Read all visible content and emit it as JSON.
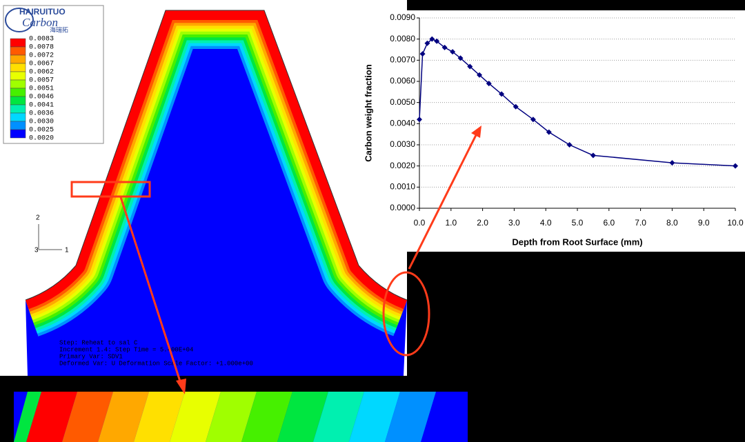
{
  "logo": {
    "brand": "HAIRUITUO",
    "script": "Carbon",
    "cn": "海瑞拓"
  },
  "contour_legend": {
    "labels": [
      "0.0083",
      "0.0078",
      "0.0072",
      "0.0067",
      "0.0062",
      "0.0057",
      "0.0051",
      "0.0046",
      "0.0041",
      "0.0036",
      "0.0030",
      "0.0025",
      "0.0020"
    ],
    "colors": [
      "#ff0000",
      "#ff5a00",
      "#ffa800",
      "#ffe000",
      "#e8ff00",
      "#a0ff00",
      "#46f000",
      "#00e640",
      "#00f0b0",
      "#00d8ff",
      "#0090ff",
      "#0000ff"
    ]
  },
  "triad": {
    "y": "2",
    "z": "3",
    "x": "1"
  },
  "step_info": [
    "Step: Reheat to sal C",
    "Increment   1.4: Step Time =   5.400E+04",
    "Primary Var: SDV1",
    "Deformed Var: U   Deformation Scale Factor: +1.000e+00"
  ],
  "chart_data": {
    "type": "line",
    "x_label": "Depth from Root Surface (mm)",
    "y_label": "Carbon weight fraction",
    "x": [
      0.0,
      0.1,
      0.25,
      0.4,
      0.55,
      0.8,
      1.05,
      1.3,
      1.6,
      1.9,
      2.2,
      2.6,
      3.05,
      3.6,
      4.1,
      4.75,
      5.5,
      8.0,
      10.0
    ],
    "series": [
      {
        "name": "Carbon",
        "color": "#000080",
        "values": [
          0.0042,
          0.0073,
          0.0078,
          0.008,
          0.0079,
          0.0076,
          0.0074,
          0.0071,
          0.0067,
          0.0063,
          0.0059,
          0.0054,
          0.0048,
          0.0042,
          0.0036,
          0.003,
          0.0025,
          0.00215,
          0.002
        ]
      }
    ],
    "xlim": [
      0,
      10
    ],
    "ylim": [
      0,
      0.009
    ],
    "xticks": [
      {
        "value": 0,
        "label": "0.0"
      },
      {
        "value": 1,
        "label": "1.0"
      },
      {
        "value": 2,
        "label": "2.0"
      },
      {
        "value": 3,
        "label": "3.0"
      },
      {
        "value": 4,
        "label": "4.0"
      },
      {
        "value": 5,
        "label": "5.0"
      },
      {
        "value": 6,
        "label": "6.0"
      },
      {
        "value": 7,
        "label": "7.0"
      },
      {
        "value": 8,
        "label": "8.0"
      },
      {
        "value": 9,
        "label": "9.0"
      },
      {
        "value": 10,
        "label": "10.0"
      }
    ],
    "yticks": [
      {
        "value": 0,
        "label": "0.0000"
      },
      {
        "value": 0.001,
        "label": "0.0010"
      },
      {
        "value": 0.002,
        "label": "0.0020"
      },
      {
        "value": 0.003,
        "label": "0.0030"
      },
      {
        "value": 0.004,
        "label": "0.0040"
      },
      {
        "value": 0.005,
        "label": "0.0050"
      },
      {
        "value": 0.006,
        "label": "0.0060"
      },
      {
        "value": 0.007,
        "label": "0.0070"
      },
      {
        "value": 0.008,
        "label": "0.0080"
      },
      {
        "value": 0.009,
        "label": "0.0090"
      }
    ],
    "grid": true
  }
}
